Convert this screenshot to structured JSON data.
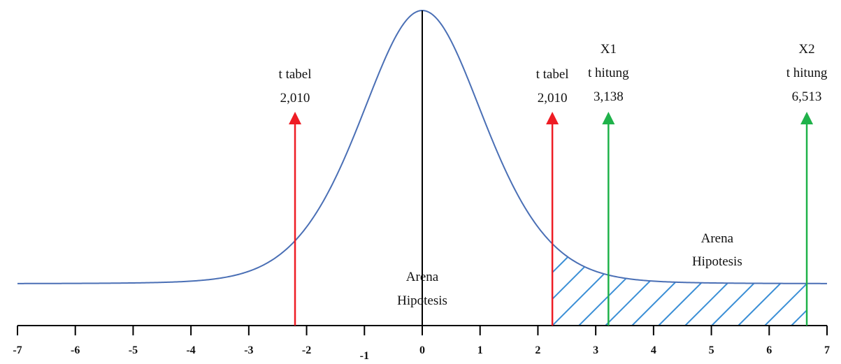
{
  "chart_data": {
    "type": "line",
    "title": "",
    "xlabel": "",
    "ylabel": "",
    "xlim": [
      -7,
      7
    ],
    "x_ticks": [
      "-7",
      "-6",
      "-5",
      "-4",
      "-3",
      "-2",
      "-1",
      "0",
      "1",
      "2",
      "3",
      "4",
      "5",
      "6",
      "7"
    ],
    "curve": {
      "kind": "t-distribution density (schematic)",
      "color": "#4a6fb5",
      "peak_x": 0,
      "tail_baseline_relative": 0.13
    },
    "critical_lines": [
      {
        "x": -2.2,
        "label_line1": "t tabel",
        "label_line2": "2,010",
        "color": "#ee1c24"
      },
      {
        "x": 2.25,
        "label_line1": "t tabel",
        "label_line2": "2,010",
        "color": "#ee1c24"
      }
    ],
    "test_statistics": [
      {
        "x": 3.22,
        "variable": "X1",
        "label_line1": "t hitung",
        "label_line2": "3,138",
        "color": "#1fb24a"
      },
      {
        "x": 6.65,
        "variable": "X2",
        "label_line1": "t hitung",
        "label_line2": "6,513",
        "color": "#1fb24a"
      }
    ],
    "regions": [
      {
        "name": "acceptance",
        "label_line1": "Arena",
        "label_line2": "Hipotesis",
        "x_from": -2.2,
        "x_to": 2.25,
        "hatched": false
      },
      {
        "name": "rejection",
        "label_line1": "Arena",
        "label_line2": "Hipotesis",
        "x_from": 2.25,
        "x_to": 6.65,
        "hatched": true,
        "hatch_color": "#3b8fd6"
      }
    ],
    "grid": false,
    "legend": "none"
  }
}
